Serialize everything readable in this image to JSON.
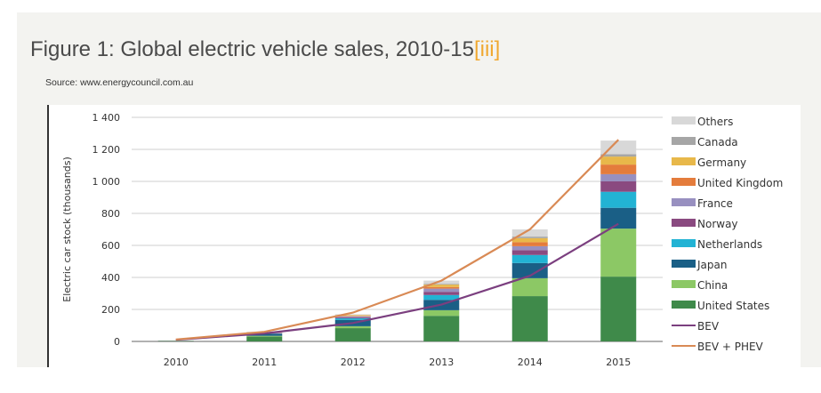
{
  "header": {
    "title": "Figure 1: Global electric vehicle sales, 2010-15",
    "title_ref": "[iii]",
    "source": "Source: www.energycouncil.com.au"
  },
  "chart_data": {
    "type": "bar",
    "stacked": true,
    "title": "Figure 1: Global electric vehicle sales, 2010-15",
    "xlabel": "",
    "ylabel": "Electric car stock (thousands)",
    "ylim": [
      0,
      1400
    ],
    "yticks": [
      0,
      200,
      400,
      600,
      800,
      1000,
      1200,
      1400
    ],
    "ytick_labels": [
      "0",
      "200",
      "400",
      "600",
      "800",
      "1 000",
      "1 200",
      "1 400"
    ],
    "grid": true,
    "legend_position": "right",
    "categories": [
      "2010",
      "2011",
      "2012",
      "2013",
      "2014",
      "2015"
    ],
    "series": [
      {
        "name": "United States",
        "color": "#3f8a4a",
        "values": [
          2,
          30,
          83,
          160,
          283,
          405
        ]
      },
      {
        "name": "China",
        "color": "#8cc865",
        "values": [
          1,
          5,
          12,
          35,
          112,
          300
        ]
      },
      {
        "name": "Japan",
        "color": "#1a5f86",
        "values": [
          1,
          13,
          40,
          65,
          95,
          130
        ]
      },
      {
        "name": "Netherlands",
        "color": "#22b3d4",
        "values": [
          0,
          1,
          10,
          30,
          50,
          100
        ]
      },
      {
        "name": "Norway",
        "color": "#8a4a80",
        "values": [
          1,
          2,
          6,
          20,
          30,
          65
        ]
      },
      {
        "name": "France",
        "color": "#9890c0",
        "values": [
          0,
          3,
          6,
          20,
          25,
          45
        ]
      },
      {
        "name": "United Kingdom",
        "color": "#e47c3c",
        "values": [
          0,
          1,
          3,
          10,
          25,
          60
        ]
      },
      {
        "name": "Germany",
        "color": "#e8b84a",
        "values": [
          0,
          2,
          4,
          15,
          25,
          50
        ]
      },
      {
        "name": "Canada",
        "color": "#a6a6a6",
        "values": [
          0,
          0,
          1,
          5,
          10,
          15
        ]
      },
      {
        "name": "Others",
        "color": "#d8d8d8",
        "values": [
          1,
          3,
          5,
          20,
          45,
          85
        ]
      }
    ],
    "lines": [
      {
        "name": "BEV",
        "color": "#7b3f7f",
        "values": [
          10,
          50,
          115,
          230,
          410,
          735
        ]
      },
      {
        "name": "BEV + PHEV",
        "color": "#d98a55",
        "values": [
          12,
          60,
          180,
          380,
          700,
          1260
        ]
      }
    ],
    "legend": [
      "Others",
      "Canada",
      "Germany",
      "United Kingdom",
      "France",
      "Norway",
      "Netherlands",
      "Japan",
      "China",
      "United States",
      "BEV",
      "BEV + PHEV"
    ]
  }
}
